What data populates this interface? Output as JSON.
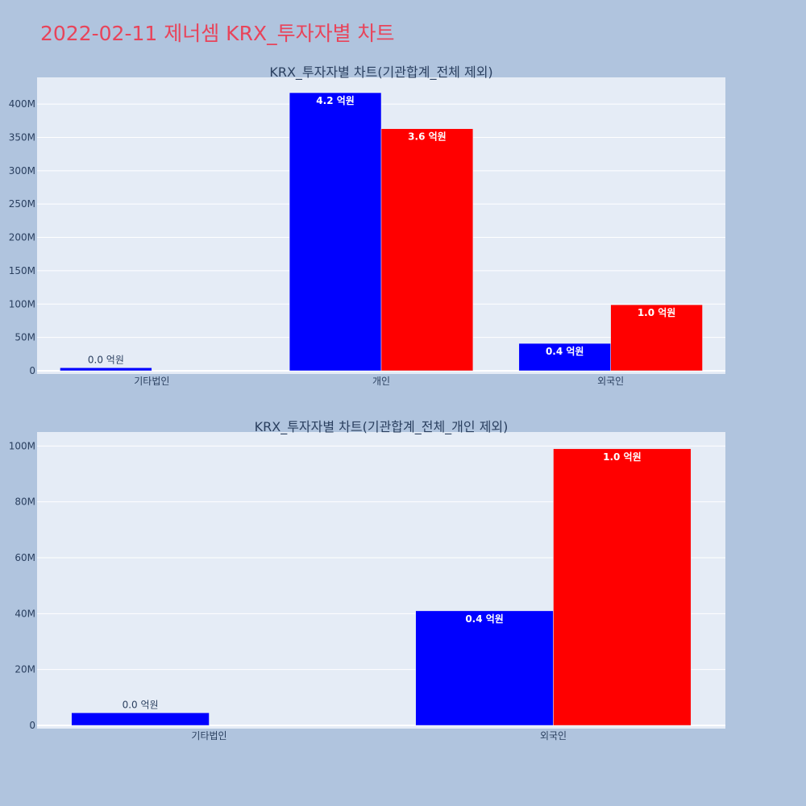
{
  "title": "2022-02-11 제너셈 KRX_투자자별 차트",
  "colors": {
    "background": "#b0c4de",
    "plot_bg": "#e5ecf6",
    "title": "#e8445a",
    "series_a": "#0000ff",
    "series_b": "#ff0000"
  },
  "chart_data": [
    {
      "type": "bar",
      "title": "KRX_투자자별 차트(기관합계_전체 제외)",
      "categories": [
        "기타법인",
        "개인",
        "외국인"
      ],
      "series": [
        {
          "color": "#0000ff",
          "values": [
            4500000,
            417000000,
            41000000
          ],
          "labels": [
            "0.0 억원",
            "4.2 억원",
            "0.4 억원"
          ]
        },
        {
          "color": "#ff0000",
          "values": [
            0,
            363000000,
            99000000
          ],
          "labels": [
            "",
            "3.6 억원",
            "1.0 억원"
          ]
        }
      ],
      "ylim": [
        0,
        440000000
      ],
      "yticks": [
        0,
        50000000,
        100000000,
        150000000,
        200000000,
        250000000,
        300000000,
        350000000,
        400000000
      ],
      "ytick_labels": [
        "0",
        "50M",
        "100M",
        "150M",
        "200M",
        "250M",
        "300M",
        "350M",
        "400M"
      ],
      "grid": true,
      "xlabel": "",
      "ylabel": ""
    },
    {
      "type": "bar",
      "title": "KRX_투자자별 차트(기관합계_전체_개인 제외)",
      "categories": [
        "기타법인",
        "외국인"
      ],
      "series": [
        {
          "color": "#0000ff",
          "values": [
            4500000,
            41000000
          ],
          "labels": [
            "0.0 억원",
            "0.4 억원"
          ]
        },
        {
          "color": "#ff0000",
          "values": [
            0,
            99000000
          ],
          "labels": [
            "",
            "1.0 억원"
          ]
        }
      ],
      "ylim": [
        0,
        105000000
      ],
      "yticks": [
        0,
        20000000,
        40000000,
        60000000,
        80000000,
        100000000
      ],
      "ytick_labels": [
        "0",
        "20M",
        "40M",
        "60M",
        "80M",
        "100M"
      ],
      "grid": true,
      "xlabel": "",
      "ylabel": ""
    }
  ]
}
